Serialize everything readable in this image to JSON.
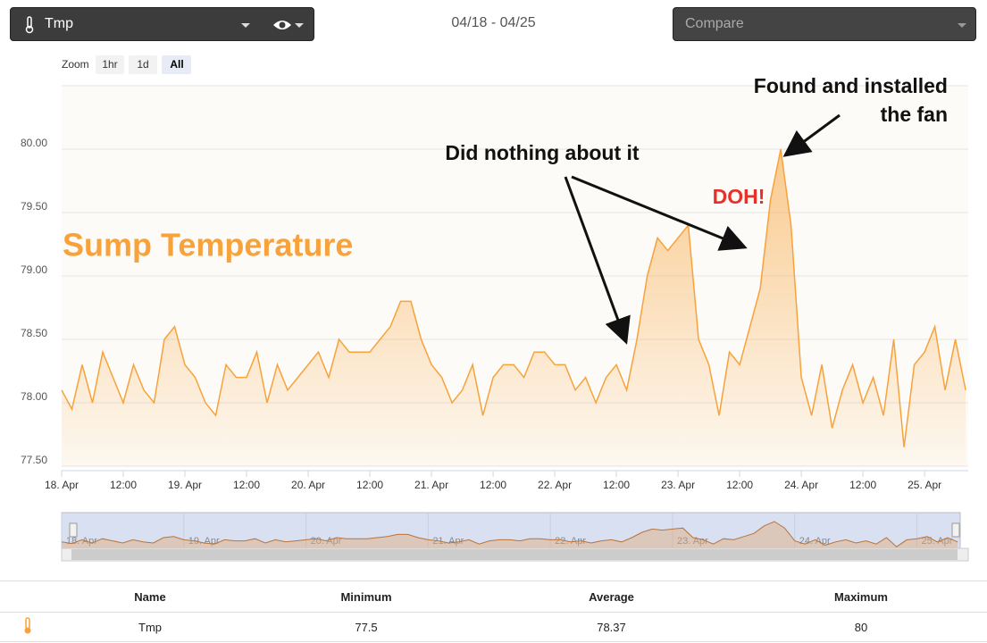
{
  "toolbar": {
    "sensor": "Tmp",
    "range": "04/18 - 04/25",
    "compare": "Compare"
  },
  "zoom": {
    "label": "Zoom",
    "buttons": [
      "1hr",
      "1d",
      "All"
    ]
  },
  "chart_data": {
    "type": "area",
    "title": "Sump Temperature",
    "annotations": [
      "Did nothing about it",
      "DOH!",
      [
        "Found and installed",
        "the fan"
      ]
    ],
    "x": [
      0,
      2,
      4,
      6,
      8,
      10,
      12,
      14,
      16,
      18,
      20,
      22,
      24,
      26,
      28,
      30,
      32,
      34,
      36,
      38,
      40,
      42,
      44,
      46,
      48,
      50,
      52,
      54,
      56,
      58,
      60,
      62,
      64,
      66,
      68,
      70,
      72,
      74,
      76,
      78,
      80,
      82,
      84,
      86,
      88,
      90,
      92,
      94,
      96,
      98,
      100,
      102,
      104,
      106,
      108,
      110,
      112,
      114,
      116,
      118,
      120,
      122,
      124,
      126,
      128,
      130,
      132,
      134,
      136,
      138,
      140,
      142,
      144,
      146,
      148,
      150,
      152,
      154,
      156,
      158,
      160,
      162,
      164,
      166,
      168,
      170,
      172,
      174,
      176
    ],
    "series": [
      {
        "name": "Tmp",
        "color": "#f7a23a",
        "values": [
          78.1,
          77.95,
          78.3,
          78.0,
          78.4,
          78.2,
          78.0,
          78.3,
          78.1,
          78.0,
          78.5,
          78.6,
          78.3,
          78.2,
          78.0,
          77.9,
          78.3,
          78.2,
          78.2,
          78.4,
          78.0,
          78.3,
          78.1,
          78.2,
          78.3,
          78.4,
          78.2,
          78.5,
          78.4,
          78.4,
          78.4,
          78.5,
          78.6,
          78.8,
          78.8,
          78.5,
          78.3,
          78.2,
          78.0,
          78.1,
          78.3,
          77.9,
          78.2,
          78.3,
          78.3,
          78.2,
          78.4,
          78.4,
          78.3,
          78.3,
          78.1,
          78.2,
          78.0,
          78.2,
          78.3,
          78.1,
          78.5,
          79.0,
          79.3,
          79.2,
          79.3,
          79.4,
          78.5,
          78.3,
          77.9,
          78.4,
          78.3,
          78.6,
          78.9,
          79.6,
          80.0,
          79.4,
          78.2,
          77.9,
          78.3,
          77.8,
          78.1,
          78.3,
          78.0,
          78.2,
          77.9,
          78.5,
          77.65,
          78.3,
          78.4,
          78.6,
          78.1,
          78.5,
          78.1
        ]
      }
    ],
    "xlim": [
      0,
      176.5
    ],
    "xticks": [
      {
        "value": 0,
        "label": "18. Apr"
      },
      {
        "value": 12,
        "label": "12:00"
      },
      {
        "value": 24,
        "label": "19. Apr"
      },
      {
        "value": 36,
        "label": "12:00"
      },
      {
        "value": 48,
        "label": "20. Apr"
      },
      {
        "value": 60,
        "label": "12:00"
      },
      {
        "value": 72,
        "label": "21. Apr"
      },
      {
        "value": 84,
        "label": "12:00"
      },
      {
        "value": 96,
        "label": "22. Apr"
      },
      {
        "value": 108,
        "label": "12:00"
      },
      {
        "value": 120,
        "label": "23. Apr"
      },
      {
        "value": 132,
        "label": "12:00"
      },
      {
        "value": 144,
        "label": "24. Apr"
      },
      {
        "value": 156,
        "label": "12:00"
      },
      {
        "value": 168,
        "label": "25. Apr"
      }
    ],
    "ylim": [
      77.5,
      80.5
    ],
    "yticks": [
      {
        "value": 77.5,
        "label": "77.50"
      },
      {
        "value": 78,
        "label": "78.00"
      },
      {
        "value": 78.5,
        "label": "78.50"
      },
      {
        "value": 79,
        "label": "79.00"
      },
      {
        "value": 79.5,
        "label": "79.50"
      },
      {
        "value": 80,
        "label": "80.00"
      },
      80.5
    ],
    "grid": true
  },
  "table": {
    "headers": [
      "Name",
      "Minimum",
      "Average",
      "Maximum"
    ],
    "rows": [
      [
        "Tmp",
        77.5,
        78.37,
        80
      ]
    ]
  }
}
